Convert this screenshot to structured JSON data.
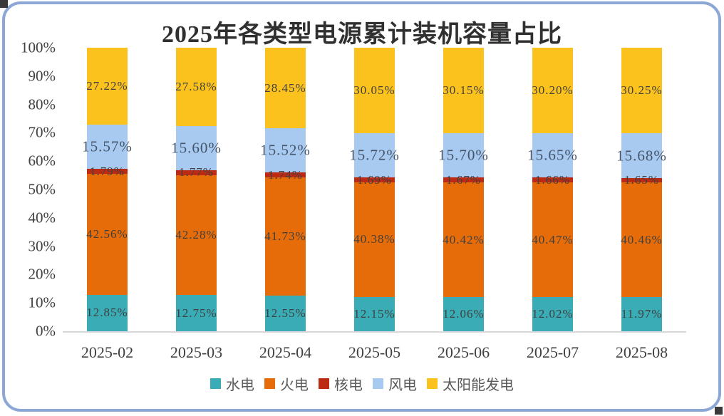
{
  "title": "2025年各类型电源累计装机容量占比",
  "frame": {
    "border_color": "#8CA7D6"
  },
  "chart_data": {
    "type": "bar",
    "stacked": true,
    "title": "2025年各类型电源累计装机容量占比",
    "categories": [
      "2025-02",
      "2025-03",
      "2025-04",
      "2025-05",
      "2025-06",
      "2025-07",
      "2025-08"
    ],
    "series": [
      {
        "key": "hydro",
        "name": "水电",
        "color": "#3AACB6",
        "values": [
          12.85,
          12.75,
          12.55,
          12.15,
          12.06,
          12.02,
          11.97
        ]
      },
      {
        "key": "thermal",
        "name": "火电",
        "color": "#E66C0A",
        "values": [
          42.56,
          42.28,
          41.73,
          40.38,
          40.42,
          40.47,
          40.46
        ]
      },
      {
        "key": "nuclear",
        "name": "核电",
        "color": "#BD2A14",
        "values": [
          1.79,
          1.77,
          1.74,
          1.69,
          1.67,
          1.66,
          1.65
        ]
      },
      {
        "key": "wind",
        "name": "风电",
        "color": "#A8CAF0",
        "values": [
          15.57,
          15.6,
          15.52,
          15.72,
          15.7,
          15.65,
          15.68
        ]
      },
      {
        "key": "solar",
        "name": "太阳能发电",
        "color": "#FBC21D",
        "values": [
          27.22,
          27.58,
          28.45,
          30.05,
          30.15,
          30.2,
          30.25
        ]
      }
    ],
    "data_label_format": "0.00%",
    "y_ticks": [
      "100%",
      "90%",
      "80%",
      "70%",
      "60%",
      "50%",
      "40%",
      "30%",
      "20%",
      "10%",
      "0%"
    ],
    "ylim": [
      0,
      100
    ],
    "grid": false,
    "legend_position": "bottom",
    "axis_text_color": "#404040",
    "legend_text_color": "#595959",
    "wind_label_color": "#44546A"
  }
}
